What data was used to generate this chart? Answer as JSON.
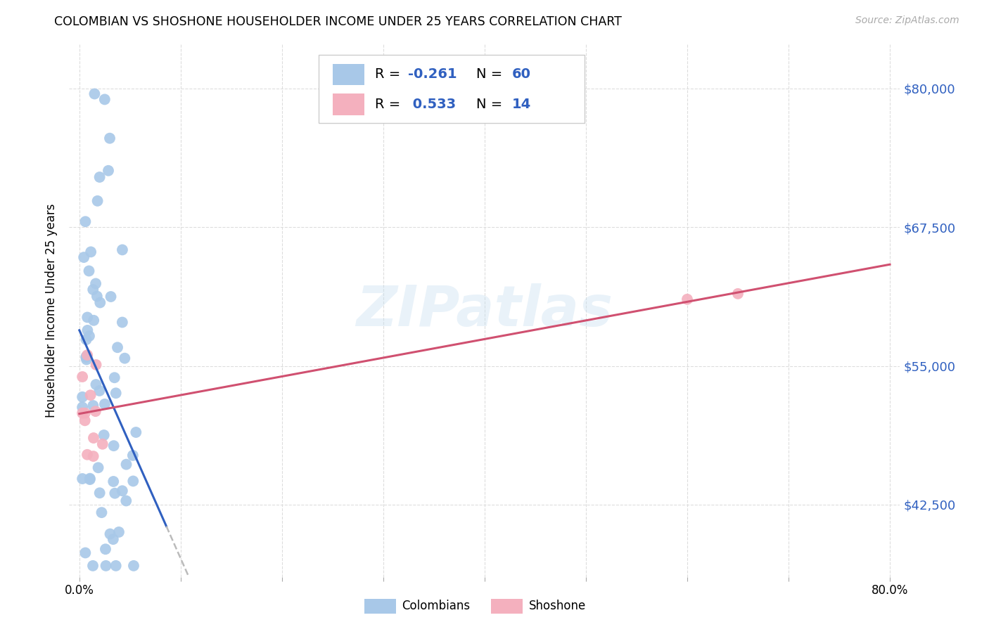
{
  "title": "COLOMBIAN VS SHOSHONE HOUSEHOLDER INCOME UNDER 25 YEARS CORRELATION CHART",
  "source": "Source: ZipAtlas.com",
  "ylabel": "Householder Income Under 25 years",
  "xmin": 0.0,
  "xmax": 0.8,
  "ymin": 36000,
  "ymax": 84000,
  "yticks": [
    42500,
    55000,
    67500,
    80000
  ],
  "ytick_labels": [
    "$42,500",
    "$55,000",
    "$67,500",
    "$80,000"
  ],
  "colombian_color": "#a8c8e8",
  "shoshone_color": "#f4b0be",
  "colombian_line_color": "#3060c0",
  "shoshone_line_color": "#d05070",
  "dashed_line_color": "#bbbbbb",
  "R_colombian": -0.261,
  "N_colombian": 60,
  "R_shoshone": 0.533,
  "N_shoshone": 14,
  "watermark": "ZIPatlas",
  "grid_color": "#dddddd",
  "background": "#ffffff"
}
